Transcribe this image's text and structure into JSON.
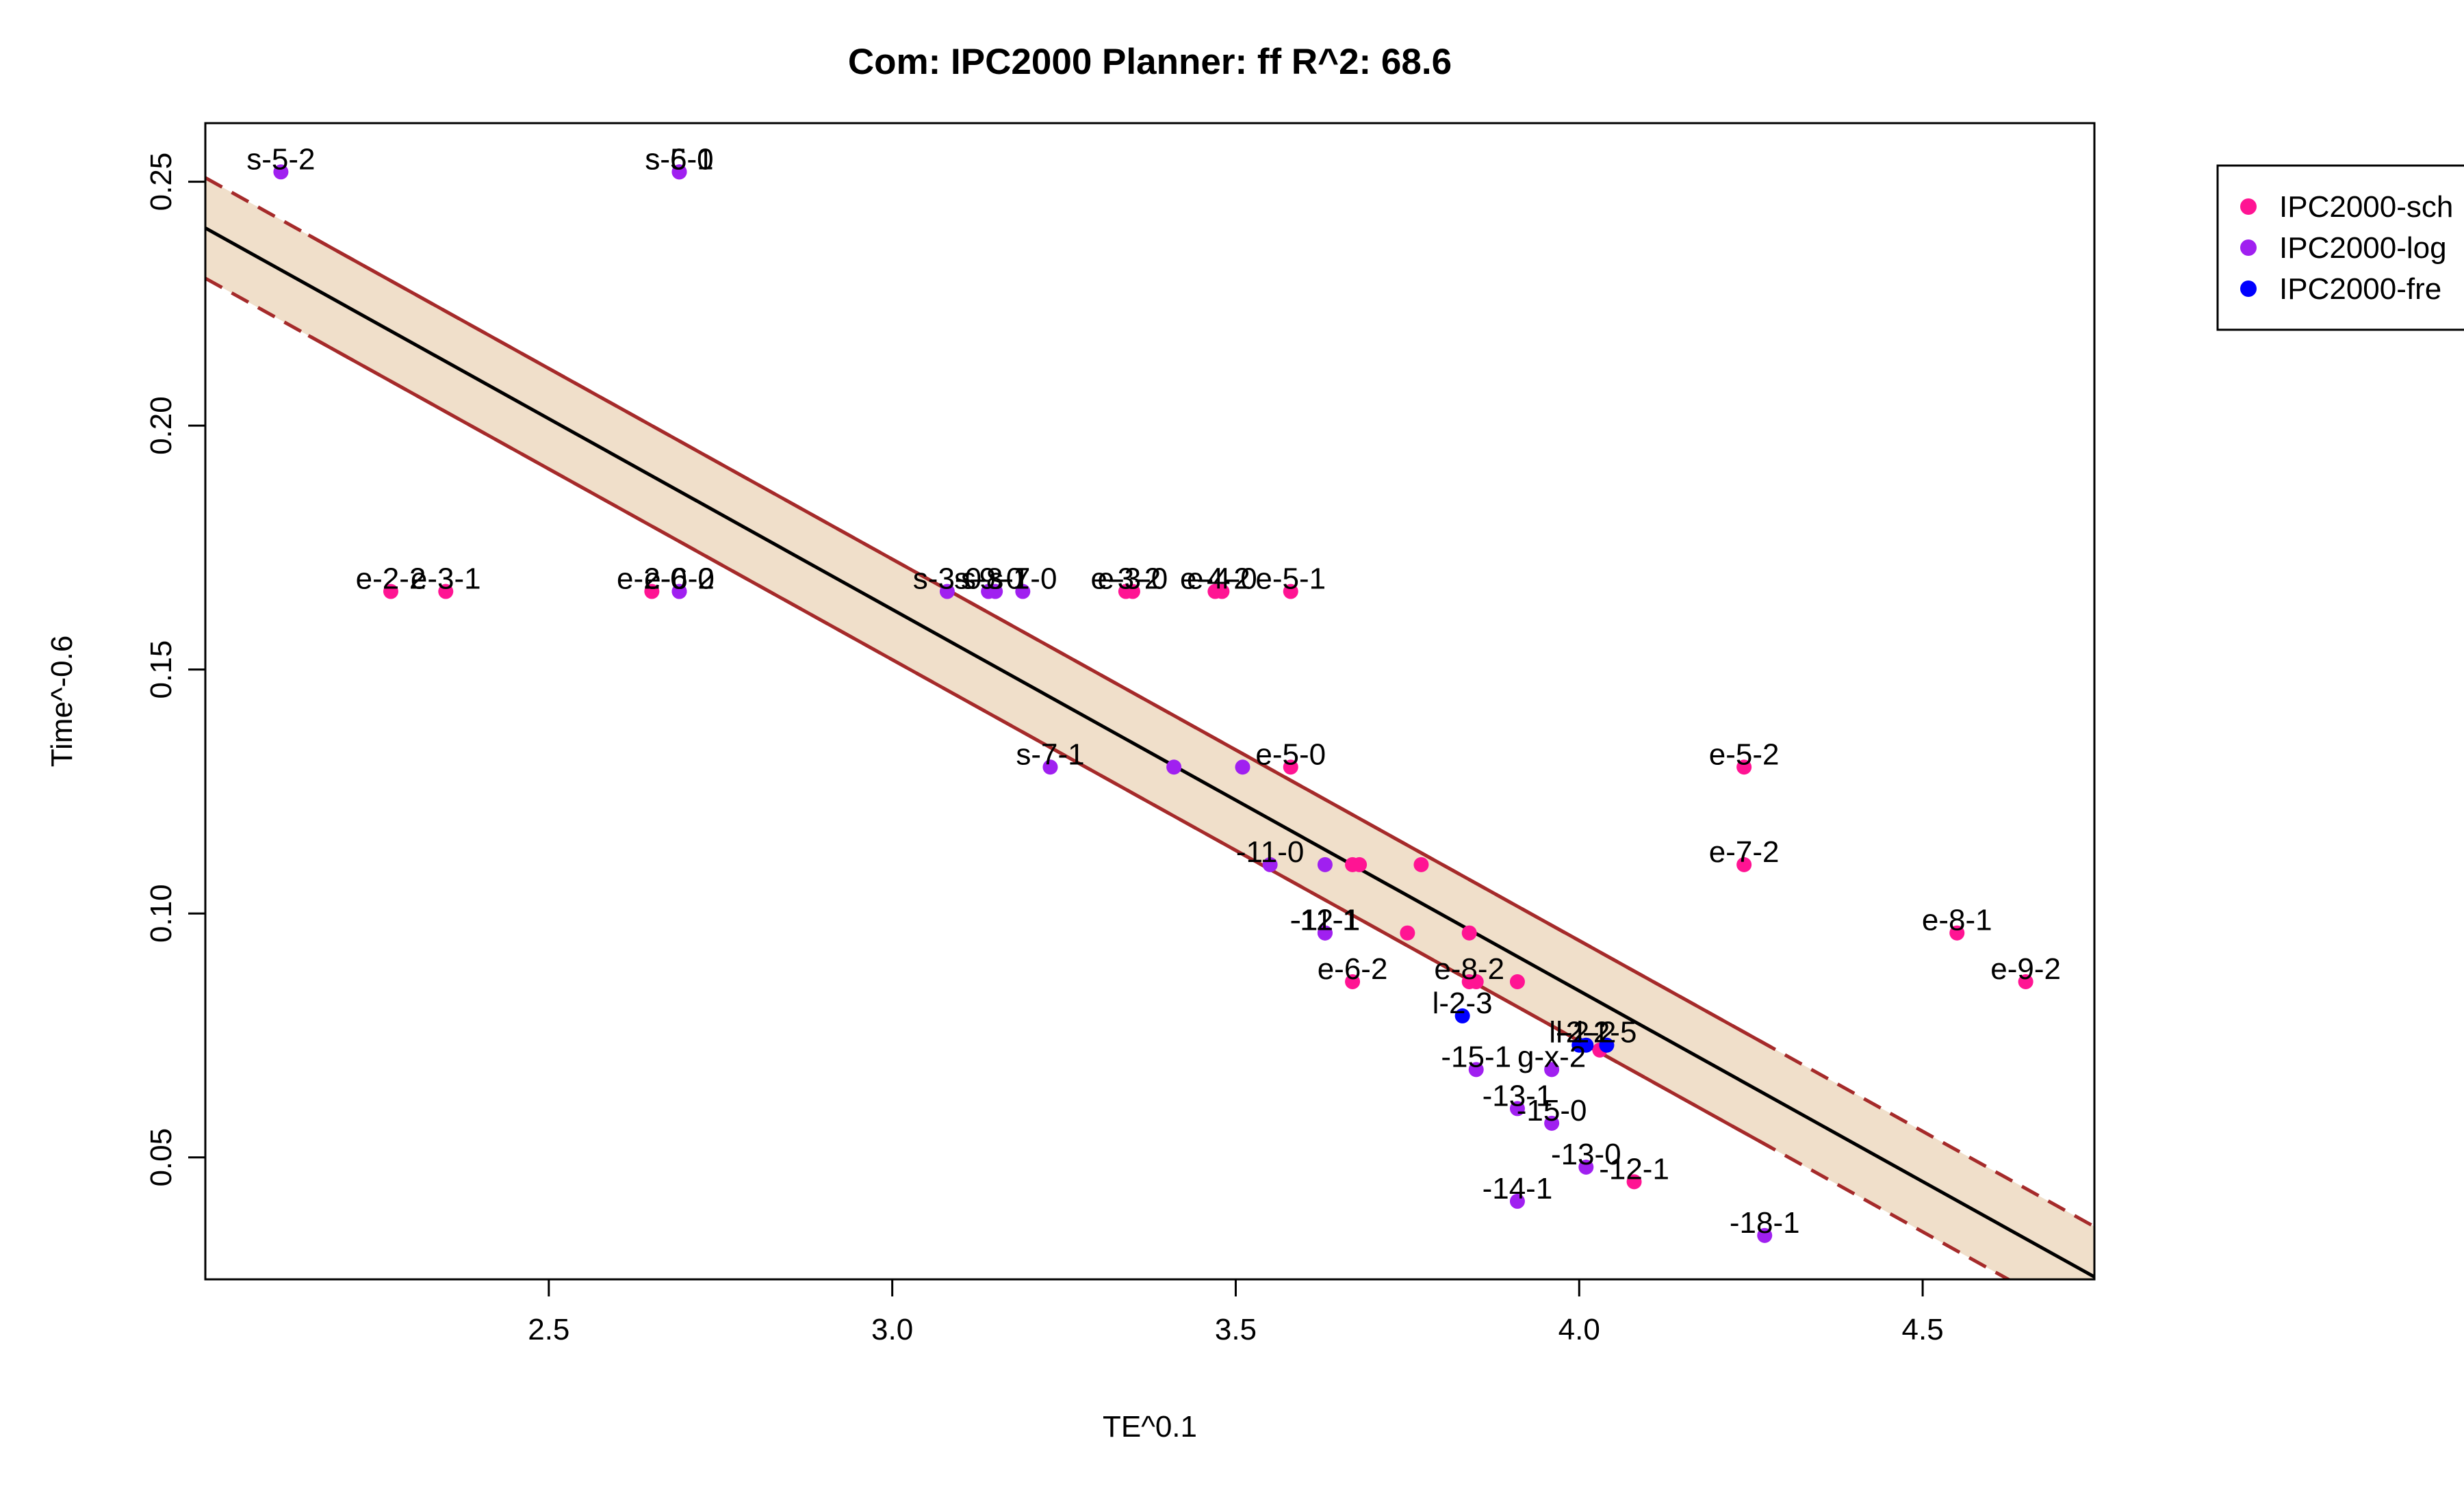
{
  "chart_data": {
    "type": "scatter",
    "title": "Com: IPC2000 Planner: ff R^2: 68.6",
    "xlabel": "TE^0.1",
    "ylabel": "Time^-0.6",
    "xlim": [
      2.0,
      4.75
    ],
    "ylim": [
      0.025,
      0.262
    ],
    "x_ticks": [
      "2.5",
      "3.0",
      "3.5",
      "4.0",
      "4.5"
    ],
    "x_tick_values": [
      2.5,
      3.0,
      3.5,
      4.0,
      4.5
    ],
    "y_ticks": [
      "0.05",
      "0.10",
      "0.15",
      "0.20",
      "0.25"
    ],
    "y_tick_values": [
      0.05,
      0.1,
      0.15,
      0.2,
      0.25
    ],
    "grid": false,
    "legend_position": "right",
    "regression": {
      "line": [
        [
          2.0,
          0.2405
        ],
        [
          4.75,
          0.0255
        ]
      ],
      "band_upper": [
        [
          2.0,
          0.2508
        ],
        [
          4.75,
          0.0358
        ]
      ],
      "band_lower": [
        [
          2.0,
          0.2302
        ],
        [
          4.75,
          0.0152
        ]
      ],
      "band_solid_x": [
        2.0,
        4.6
      ],
      "line_color": "#000000",
      "band_fill": "#f0dfca",
      "band_edge_color": "#a52a2a"
    },
    "series": [
      {
        "name": "IPC2000-sch",
        "color": "#ff1493",
        "points": [
          {
            "x": 2.27,
            "y": 0.166,
            "label": "e-2-2"
          },
          {
            "x": 2.35,
            "y": 0.166,
            "label": "e-3-1"
          },
          {
            "x": 2.65,
            "y": 0.166,
            "label": "e-2-0"
          },
          {
            "x": 3.34,
            "y": 0.166,
            "label": "e-3-2"
          },
          {
            "x": 3.35,
            "y": 0.166,
            "label": "e-3-0"
          },
          {
            "x": 3.47,
            "y": 0.166,
            "label": "e-4-2"
          },
          {
            "x": 3.48,
            "y": 0.166,
            "label": "e-4-0"
          },
          {
            "x": 3.58,
            "y": 0.166,
            "label": "e-5-1"
          },
          {
            "x": 3.58,
            "y": 0.13,
            "label": "e-5-0"
          },
          {
            "x": 4.24,
            "y": 0.13,
            "label": "e-5-2"
          },
          {
            "x": 4.24,
            "y": 0.11,
            "label": "e-7-2"
          },
          {
            "x": 3.67,
            "y": 0.11,
            "label": ""
          },
          {
            "x": 3.68,
            "y": 0.11,
            "label": ""
          },
          {
            "x": 3.77,
            "y": 0.11,
            "label": ""
          },
          {
            "x": 3.75,
            "y": 0.096,
            "label": ""
          },
          {
            "x": 3.84,
            "y": 0.096,
            "label": ""
          },
          {
            "x": 4.55,
            "y": 0.096,
            "label": "e-8-1"
          },
          {
            "x": 3.67,
            "y": 0.086,
            "label": "e-6-2"
          },
          {
            "x": 3.84,
            "y": 0.086,
            "label": "e-8-2"
          },
          {
            "x": 3.85,
            "y": 0.086,
            "label": ""
          },
          {
            "x": 3.91,
            "y": 0.086,
            "label": ""
          },
          {
            "x": 4.65,
            "y": 0.086,
            "label": "e-9-2"
          },
          {
            "x": 4.03,
            "y": 0.072,
            "label": ""
          },
          {
            "x": 4.08,
            "y": 0.045,
            "label": "-12-1"
          }
        ]
      },
      {
        "name": "IPC2000-log",
        "color": "#a020f0",
        "points": [
          {
            "x": 2.11,
            "y": 0.252,
            "label": "s-5-2"
          },
          {
            "x": 2.69,
            "y": 0.252,
            "label": "s-6-1"
          },
          {
            "x": 2.69,
            "y": 0.252,
            "label": "s-5-0"
          },
          {
            "x": 2.69,
            "y": 0.166,
            "label": "e-6-0"
          },
          {
            "x": 2.69,
            "y": 0.166,
            "label": "e-6-2"
          },
          {
            "x": 3.08,
            "y": 0.166,
            "label": "s-3-0"
          },
          {
            "x": 3.14,
            "y": 0.166,
            "label": "s-9-0"
          },
          {
            "x": 3.15,
            "y": 0.166,
            "label": "s-8-1"
          },
          {
            "x": 3.19,
            "y": 0.166,
            "label": "s-7-0"
          },
          {
            "x": 3.23,
            "y": 0.13,
            "label": "s-7-1"
          },
          {
            "x": 3.41,
            "y": 0.13,
            "label": ""
          },
          {
            "x": 3.51,
            "y": 0.13,
            "label": ""
          },
          {
            "x": 3.55,
            "y": 0.11,
            "label": "-11-0"
          },
          {
            "x": 3.63,
            "y": 0.11,
            "label": ""
          },
          {
            "x": 3.63,
            "y": 0.096,
            "label": "-11-1"
          },
          {
            "x": 3.63,
            "y": 0.096,
            "label": "-12-1"
          },
          {
            "x": 3.85,
            "y": 0.068,
            "label": "-15-1"
          },
          {
            "x": 3.96,
            "y": 0.068,
            "label": "g-x-2"
          },
          {
            "x": 3.91,
            "y": 0.06,
            "label": "-13-1"
          },
          {
            "x": 3.96,
            "y": 0.057,
            "label": "-15-0"
          },
          {
            "x": 4.01,
            "y": 0.048,
            "label": "-13-0"
          },
          {
            "x": 3.91,
            "y": 0.041,
            "label": "-14-1"
          },
          {
            "x": 4.27,
            "y": 0.034,
            "label": "-18-1"
          }
        ]
      },
      {
        "name": "IPC2000-fre",
        "color": "#0000ff",
        "points": [
          {
            "x": 3.83,
            "y": 0.079,
            "label": "l-2-3"
          },
          {
            "x": 4.0,
            "y": 0.073,
            "label": "l-2-1"
          },
          {
            "x": 4.01,
            "y": 0.073,
            "label": "l-2-2"
          },
          {
            "x": 4.04,
            "y": 0.073,
            "label": "l-2-5"
          }
        ]
      }
    ]
  }
}
